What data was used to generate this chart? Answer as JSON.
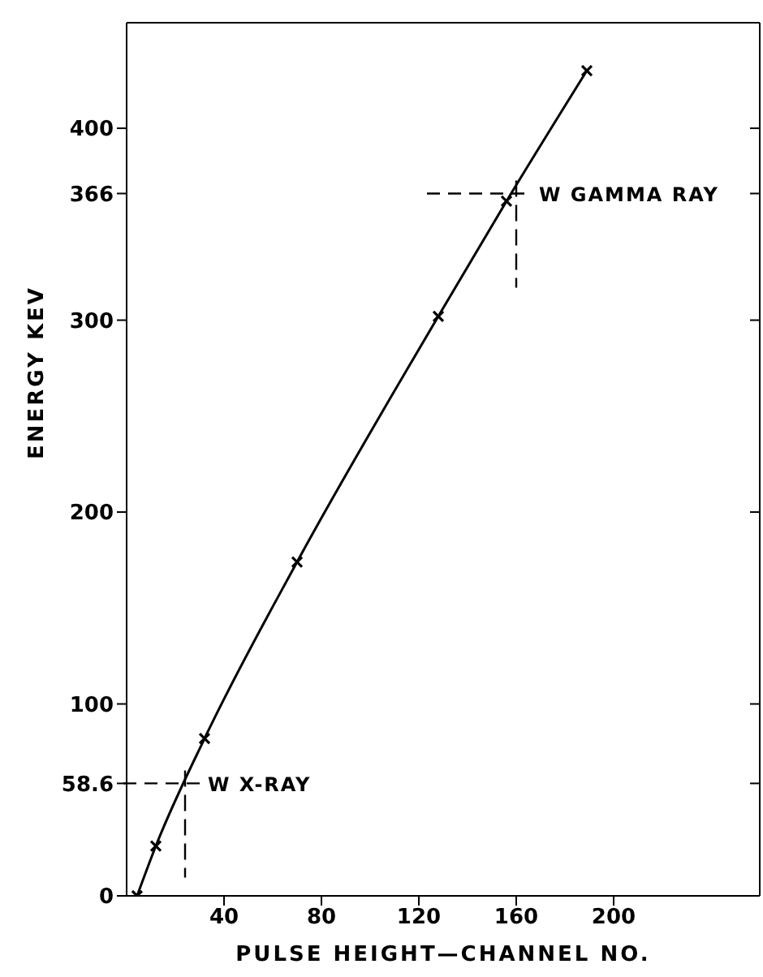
{
  "chart_data": {
    "type": "line",
    "xlabel": "PULSE HEIGHT—CHANNEL NO.",
    "ylabel": "ENERGY   KEV",
    "x": [
      4.3,
      12,
      32,
      70,
      128,
      156,
      189
    ],
    "values": [
      0,
      26,
      82,
      174,
      302,
      362,
      430
    ],
    "color": "#000000",
    "marker": "cross",
    "line_style": "solid",
    "grid": false,
    "xlim": [
      0,
      260
    ],
    "xticks": [
      40,
      80,
      120,
      160,
      200
    ],
    "ylim": [
      0,
      455
    ],
    "yticks": [
      0,
      58.6,
      100,
      200,
      300,
      366,
      400
    ],
    "annotations": [
      {
        "text": "W   X-RAY",
        "x": 24,
        "y": 58.6
      },
      {
        "text": "W   GAMMA RAY",
        "x": 160,
        "y": 366
      }
    ]
  }
}
